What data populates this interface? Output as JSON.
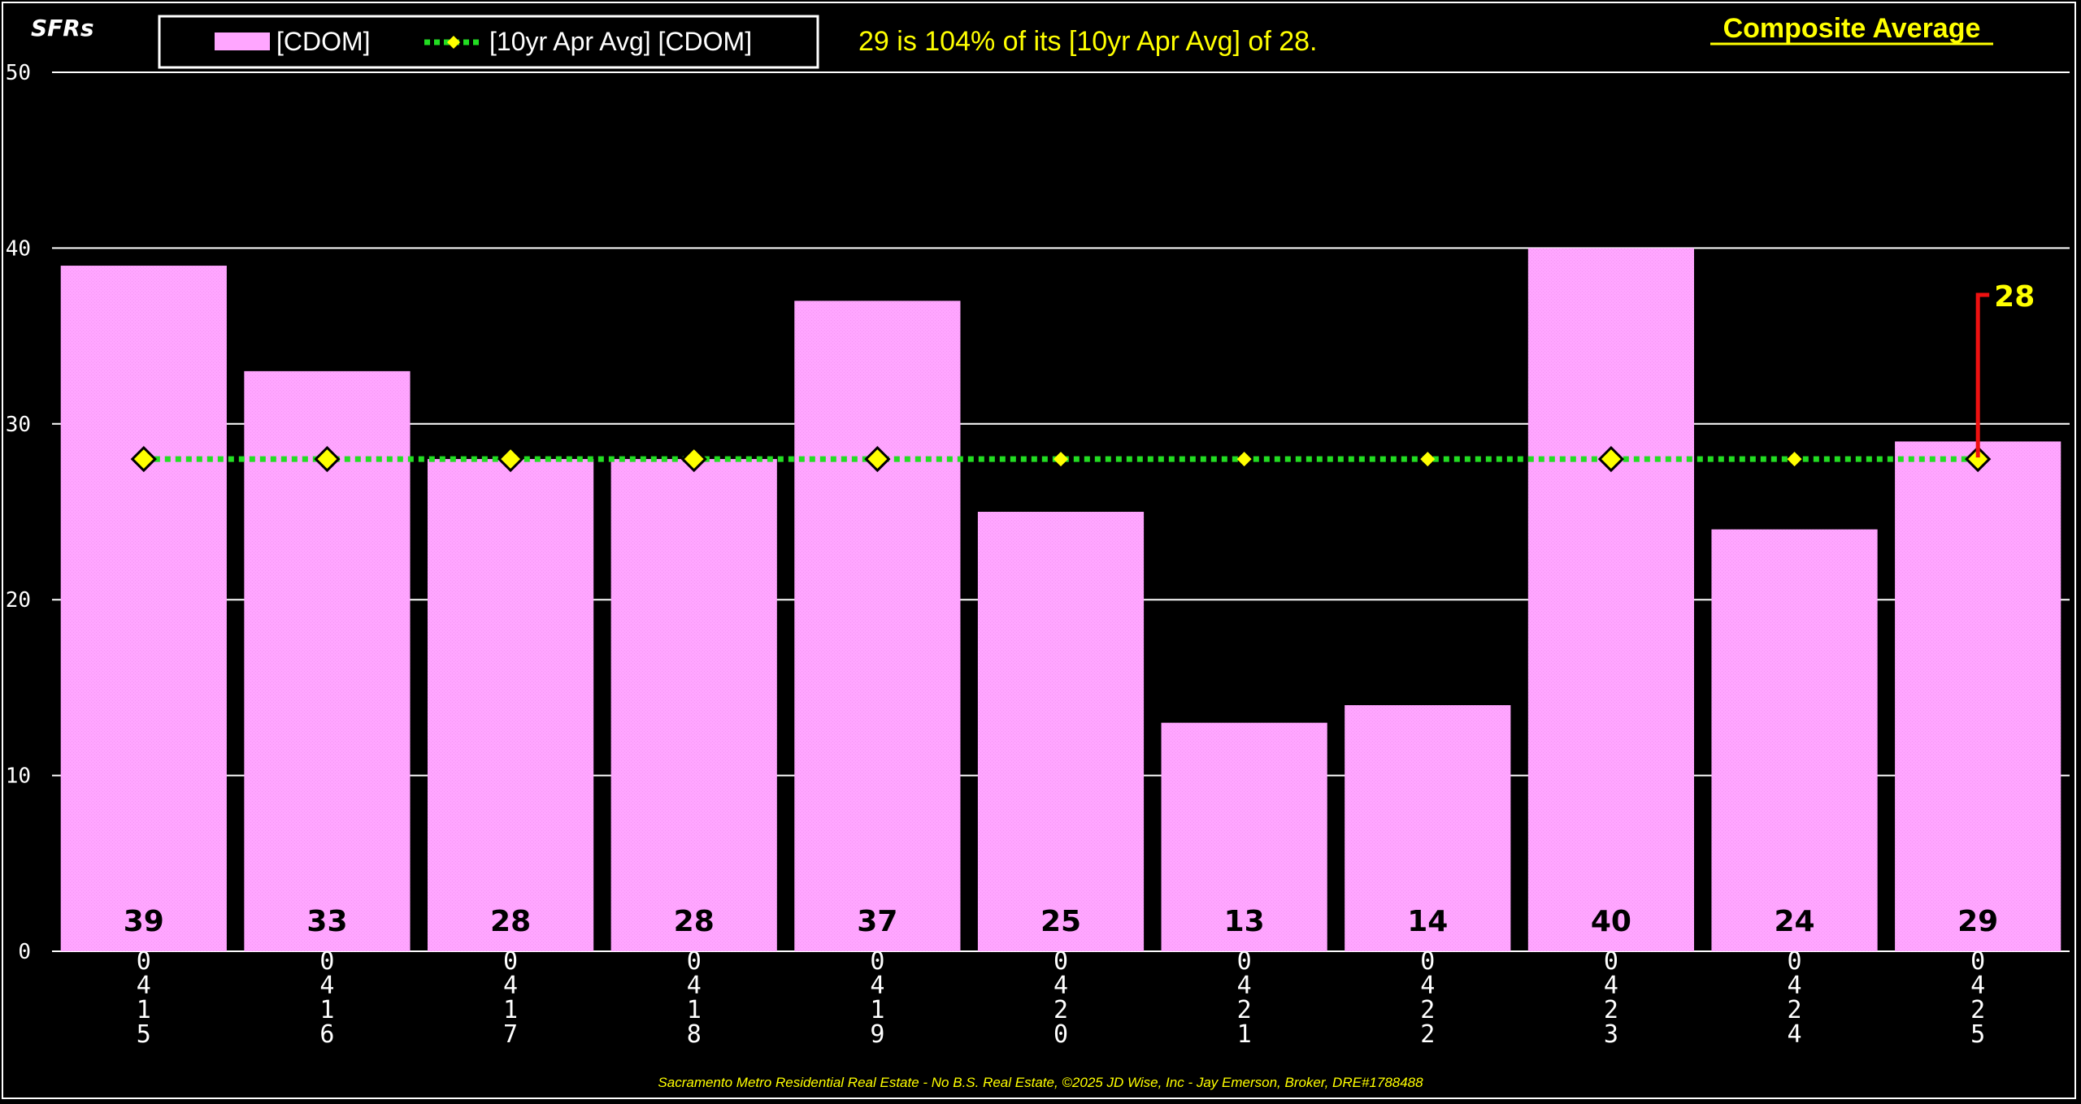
{
  "corner_label": "SFRs",
  "heading": "Composite Average",
  "summary": "29 is 104% of its [10yr Apr Avg] of 28.",
  "footer": "Sacramento Metro Residential Real Estate - No B.S. Real Estate, ©2025 JD Wise, Inc - Jay Emerson, Broker, DRE#1788488",
  "colors": {
    "bar": "#ffa6ff",
    "avg_line": "#22dd22",
    "avg_marker": "#ffff00",
    "text_yellow": "#ffff00",
    "callout": "#ee1111",
    "grid": "#ffffff",
    "background": "#000000"
  },
  "chart_data": {
    "type": "bar",
    "categories": [
      "0415",
      "0416",
      "0417",
      "0418",
      "0419",
      "0420",
      "0421",
      "0422",
      "0423",
      "0424",
      "0425"
    ],
    "series": [
      {
        "name": "[CDOM]",
        "type": "bar",
        "values": [
          39,
          33,
          28,
          28,
          37,
          25,
          13,
          14,
          40,
          24,
          29
        ]
      },
      {
        "name": "[10yr Apr Avg] [CDOM]",
        "type": "line",
        "values": [
          28,
          28,
          28,
          28,
          28,
          28,
          28,
          28,
          28,
          28,
          28
        ]
      }
    ],
    "marker_style": [
      "large",
      "large",
      "large",
      "large",
      "large",
      "small",
      "small",
      "small",
      "large",
      "small",
      "large"
    ],
    "yticks": [
      0,
      10,
      20,
      30,
      40,
      50
    ],
    "ylim": [
      0,
      50
    ],
    "grid": true,
    "legend_position": "top-left",
    "callout": {
      "category": "0425",
      "label": "28"
    }
  }
}
